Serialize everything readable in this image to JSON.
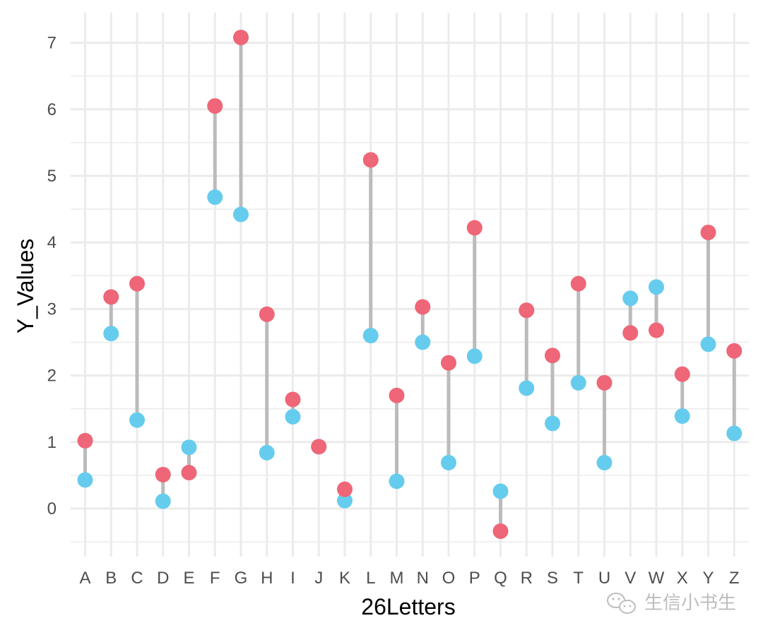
{
  "chart_data": {
    "type": "dumbbell",
    "xlabel": "26Letters",
    "ylabel": "Y_Values",
    "ylim": [
      -0.5,
      7.4
    ],
    "yticks": [
      0,
      1,
      2,
      3,
      4,
      5,
      6,
      7
    ],
    "grid": true,
    "colors": {
      "series_a": "#EE6677",
      "series_b": "#66CCEE",
      "segment": "#BBBBBB",
      "grid": "#EBEBEB"
    },
    "categories": [
      "A",
      "B",
      "C",
      "D",
      "E",
      "F",
      "G",
      "H",
      "I",
      "J",
      "K",
      "L",
      "M",
      "N",
      "O",
      "P",
      "Q",
      "R",
      "S",
      "T",
      "U",
      "V",
      "W",
      "X",
      "Y",
      "Z"
    ],
    "series": [
      {
        "values": [
          1.02,
          3.18,
          3.38,
          0.51,
          0.54,
          6.05,
          7.08,
          2.92,
          1.64,
          0.93,
          0.29,
          5.24,
          1.7,
          3.03,
          2.19,
          4.22,
          -0.34,
          2.98,
          2.3,
          3.38,
          1.89,
          2.64,
          2.68,
          2.02,
          4.15,
          2.37
        ]
      },
      {
        "values": [
          0.43,
          2.63,
          1.33,
          0.11,
          0.92,
          4.68,
          4.42,
          0.84,
          1.38,
          0.93,
          0.12,
          2.6,
          0.41,
          2.5,
          0.69,
          2.29,
          0.26,
          1.81,
          1.28,
          1.89,
          0.69,
          3.16,
          3.33,
          1.39,
          2.47,
          1.13
        ]
      }
    ]
  },
  "watermark": {
    "text": "生信小书生",
    "icon": "wechat-icon"
  }
}
